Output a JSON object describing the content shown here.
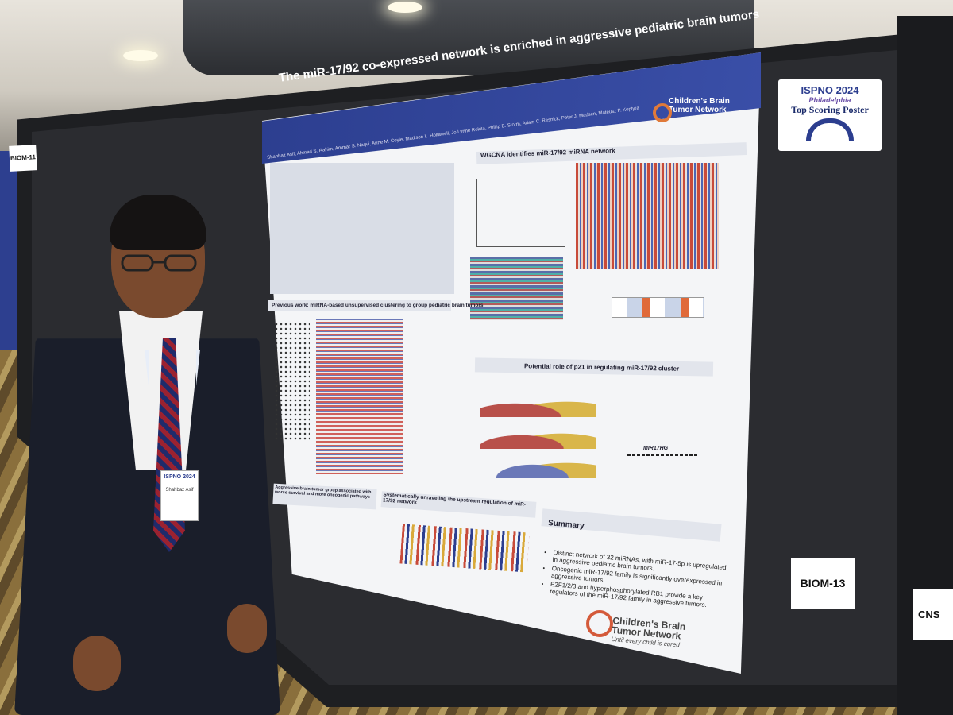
{
  "poster": {
    "title": "The miR-17/92 co-expressed network is enriched in aggressive pediatric brain tumors",
    "authors": "Shahbaz Asif, Ahmad S. Rahim, Ammar S. Naqvi, Anne M. Coyle, Madison L. Hollawell, Jo Lynne Rokita, Phillip B. Storm, Adam C. Resnick, Peter J. Madsen, Mateusz P. Koptyra",
    "org_line1": "Children's Brain",
    "org_line2": "Tumor Network",
    "tagline": "Until every child is cured",
    "sections": {
      "wgcna": "WGCNA identifies miR-17/92 miRNA network",
      "previous": "Previous work: miRNA-based unsupervised clustering to group pediatric brain tumors",
      "p21": "Potential role of p21 in regulating miR-17/92 cluster",
      "aggressive": "Aggressive brain tumor group associated with worse survival and more oncogenic pathways",
      "upstream": "Systematically unraveling the upstream regulation of miR-17/92 network",
      "summary": "Summary"
    },
    "summary_points": [
      "Distinct network of 32 miRNAs, with miR-17-5p is upregulated in aggressive pediatric brain tumors.",
      "Oncogenic miR-17/92 family is significantly overexpressed in aggressive tumors.",
      "E2F1/2/3 and hyperphosphorylated RB1 provide a key regulators of the miR-17/92 family in aggressive tumors."
    ],
    "diagram_label": "MIR17HG"
  },
  "signs": {
    "award_line1": "ISPNO 2024",
    "award_line2": "Philadelphia",
    "award_line3": "Top Scoring Poster",
    "board_number": "BIOM-13",
    "left_board": "BIOM-11",
    "right_board": "CNS"
  },
  "badge": {
    "event": "ISPNO 2024",
    "name": "Shahbaz Asif"
  },
  "colors": {
    "header_blue": "#2c3e8f",
    "poster_bg": "#f4f5f7",
    "board_black": "#1e1f22"
  }
}
